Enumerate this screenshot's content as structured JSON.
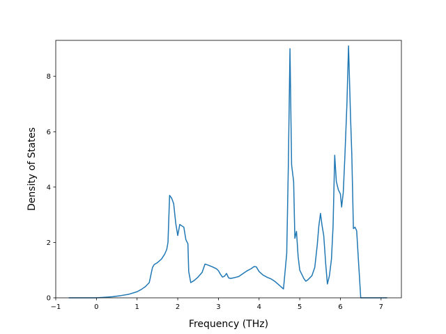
{
  "chart_data": {
    "type": "line",
    "title": "",
    "xlabel": "Frequency (THz)",
    "ylabel": "Density of States",
    "xlim": [
      -1.0,
      7.5
    ],
    "ylim": [
      0,
      9.3
    ],
    "x_ticks": [
      -1,
      0,
      1,
      2,
      3,
      4,
      5,
      6,
      7
    ],
    "y_ticks": [
      0,
      2,
      4,
      6,
      8
    ],
    "grid": false,
    "line_color": "#1f77b4",
    "series": [
      {
        "x": [
          -0.68,
          -0.3,
          0.0,
          0.2,
          0.4,
          0.6,
          0.8,
          1.0,
          1.1,
          1.2,
          1.3,
          1.35,
          1.38,
          1.42,
          1.5,
          1.6,
          1.68,
          1.73,
          1.76,
          1.8,
          1.85,
          1.9,
          1.95,
          2.0,
          2.05,
          2.1,
          2.15,
          2.2,
          2.25,
          2.27,
          2.32,
          2.4,
          2.5,
          2.6,
          2.67,
          2.75,
          2.85,
          2.95,
          3.0,
          3.05,
          3.1,
          3.15,
          3.2,
          3.25,
          3.3,
          3.4,
          3.5,
          3.6,
          3.7,
          3.8,
          3.88,
          3.93,
          4.0,
          4.1,
          4.2,
          4.3,
          4.4,
          4.5,
          4.6,
          4.68,
          4.72,
          4.76,
          4.8,
          4.85,
          4.88,
          4.92,
          4.96,
          5.0,
          5.05,
          5.1,
          5.15,
          5.2,
          5.3,
          5.37,
          5.43,
          5.47,
          5.51,
          5.55,
          5.59,
          5.64,
          5.68,
          5.73,
          5.78,
          5.82,
          5.86,
          5.9,
          5.95,
          6.0,
          6.03,
          6.07,
          6.11,
          6.16,
          6.2,
          6.25,
          6.28,
          6.32,
          6.36,
          6.4,
          6.45,
          6.5,
          6.6,
          6.8,
          7.0,
          7.15
        ],
        "y": [
          0.0,
          0.0,
          0.0,
          0.02,
          0.04,
          0.08,
          0.13,
          0.22,
          0.3,
          0.4,
          0.55,
          0.9,
          1.1,
          1.2,
          1.27,
          1.4,
          1.58,
          1.75,
          2.0,
          3.7,
          3.6,
          3.4,
          2.7,
          2.25,
          2.65,
          2.6,
          2.55,
          2.1,
          1.95,
          0.95,
          0.55,
          0.62,
          0.75,
          0.92,
          1.22,
          1.18,
          1.12,
          1.05,
          0.98,
          0.85,
          0.75,
          0.78,
          0.88,
          0.72,
          0.7,
          0.73,
          0.77,
          0.87,
          0.97,
          1.05,
          1.13,
          1.12,
          0.95,
          0.82,
          0.74,
          0.68,
          0.58,
          0.45,
          0.32,
          1.6,
          4.8,
          9.0,
          4.8,
          4.2,
          2.15,
          2.4,
          1.5,
          1.0,
          0.85,
          0.7,
          0.6,
          0.65,
          0.8,
          1.1,
          1.9,
          2.6,
          3.05,
          2.6,
          2.25,
          1.2,
          0.5,
          0.8,
          1.4,
          2.6,
          5.15,
          4.2,
          3.9,
          3.75,
          3.28,
          3.8,
          5.1,
          7.0,
          9.1,
          6.5,
          5.2,
          2.5,
          2.55,
          2.42,
          1.2,
          0.0,
          0.0,
          0.0,
          0.0,
          0.0
        ]
      }
    ]
  }
}
